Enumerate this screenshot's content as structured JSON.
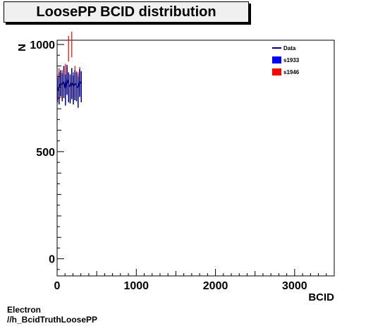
{
  "chart_data": {
    "type": "histogram",
    "title": "LoosePP BCID  distribution",
    "xlabel": "BCID",
    "ylabel": "N",
    "xlim": [
      0,
      3500
    ],
    "ylim": [
      -80,
      1020
    ],
    "x_ticks": [
      0,
      1000,
      2000,
      3000
    ],
    "y_ticks": [
      0,
      500,
      1000
    ],
    "legend": {
      "placement": "top-right"
    },
    "series": [
      {
        "name": "Data",
        "style": "line",
        "color": "#00007a",
        "x": [
          5,
          25,
          45,
          65,
          85,
          105,
          125,
          145,
          165,
          185,
          205,
          225,
          245,
          265,
          285,
          305
        ],
        "values": [
          780,
          800,
          820,
          810,
          830,
          790,
          840,
          815,
          800,
          825,
          805,
          820,
          810,
          795,
          830,
          815
        ],
        "low": [
          740,
          720,
          760,
          735,
          750,
          715,
          765,
          730,
          725,
          745,
          720,
          740,
          735,
          705,
          755,
          730
        ],
        "high": [
          845,
          870,
          880,
          865,
          900,
          860,
          905,
          870,
          860,
          890,
          855,
          880,
          870,
          850,
          885,
          875
        ]
      },
      {
        "name": "s1933",
        "style": "fill",
        "color": "#0000ff",
        "x": [
          5,
          25,
          45,
          65,
          85,
          105,
          125,
          145,
          165,
          185,
          205,
          225,
          245,
          265,
          285,
          305
        ],
        "values": [
          790,
          810,
          815,
          805,
          825,
          800,
          835,
          810,
          795,
          820,
          810,
          815,
          805,
          800,
          825,
          810
        ]
      },
      {
        "name": "s1946",
        "style": "fill",
        "color": "#ff0000",
        "x": [
          5,
          25,
          45,
          65,
          85,
          105,
          125,
          145,
          165,
          185,
          205,
          225,
          245,
          265,
          285,
          305
        ],
        "values": [
          800,
          830,
          810,
          820,
          840,
          850,
          830,
          980,
          800,
          1000,
          790,
          840,
          815,
          810,
          835,
          805
        ]
      }
    ]
  },
  "footer": {
    "line1": "Electron",
    "line2": "//h_BcidTruthLoosePP"
  }
}
